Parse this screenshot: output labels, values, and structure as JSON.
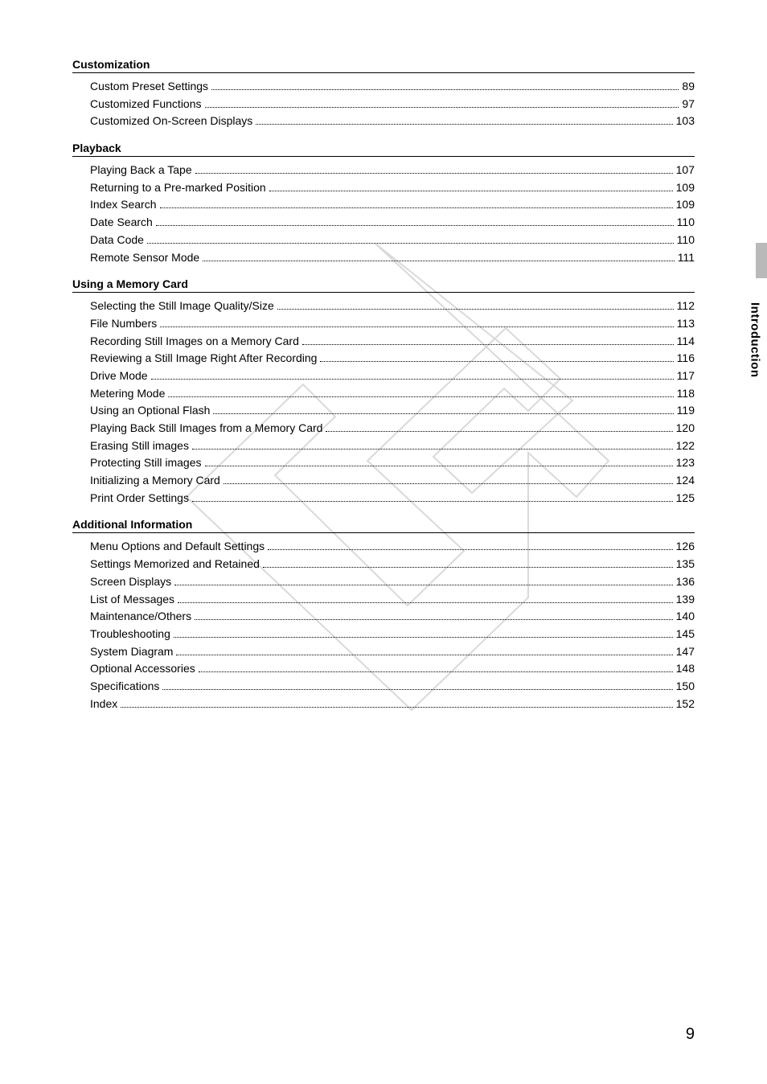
{
  "watermark": {
    "text": "COPY",
    "outline_color": "#d8d8d8",
    "size_w": 640,
    "size_h": 640
  },
  "side_tab": {
    "label": "Introduction",
    "gray_color": "#b9b9b9"
  },
  "page_number": "9",
  "sections": [
    {
      "title": "Customization",
      "entries": [
        {
          "label": "Custom Preset Settings",
          "page": "89"
        },
        {
          "label": "Customized Functions",
          "page": "97"
        },
        {
          "label": "Customized On-Screen Displays",
          "page": "103"
        }
      ]
    },
    {
      "title": "Playback",
      "entries": [
        {
          "label": "Playing Back a Tape",
          "page": "107"
        },
        {
          "label": "Returning to a Pre-marked Position",
          "page": "109"
        },
        {
          "label": "Index Search",
          "page": "109"
        },
        {
          "label": "Date Search",
          "page": "110"
        },
        {
          "label": "Data Code",
          "page": "110"
        },
        {
          "label": "Remote Sensor Mode",
          "page": "111"
        }
      ]
    },
    {
      "title": "Using a Memory Card",
      "entries": [
        {
          "label": "Selecting the Still Image Quality/Size",
          "page": "112"
        },
        {
          "label": "File Numbers",
          "page": "113"
        },
        {
          "label": "Recording Still Images on a Memory Card",
          "page": "114"
        },
        {
          "label": "Reviewing a Still Image Right After Recording",
          "page": "116"
        },
        {
          "label": "Drive Mode",
          "page": "117"
        },
        {
          "label": "Metering Mode",
          "page": "118"
        },
        {
          "label": "Using an Optional Flash",
          "page": "119"
        },
        {
          "label": "Playing Back Still Images from a Memory Card",
          "page": "120"
        },
        {
          "label": "Erasing Still images",
          "page": "122"
        },
        {
          "label": "Protecting Still images",
          "page": "123"
        },
        {
          "label": "Initializing a Memory Card",
          "page": "124"
        },
        {
          "label": "Print Order Settings",
          "page": "125"
        }
      ]
    },
    {
      "title": "Additional Information",
      "entries": [
        {
          "label": "Menu Options and Default Settings",
          "page": "126"
        },
        {
          "label": "Settings Memorized and Retained",
          "page": "135"
        },
        {
          "label": "Screen Displays",
          "page": "136"
        },
        {
          "label": "List of Messages",
          "page": "139"
        },
        {
          "label": "Maintenance/Others",
          "page": "140"
        },
        {
          "label": "Troubleshooting",
          "page": "145"
        },
        {
          "label": "System Diagram",
          "page": "147"
        },
        {
          "label": "Optional Accessories",
          "page": "148"
        },
        {
          "label": "Specifications",
          "page": "150"
        },
        {
          "label": "Index",
          "page": "152"
        }
      ]
    }
  ]
}
